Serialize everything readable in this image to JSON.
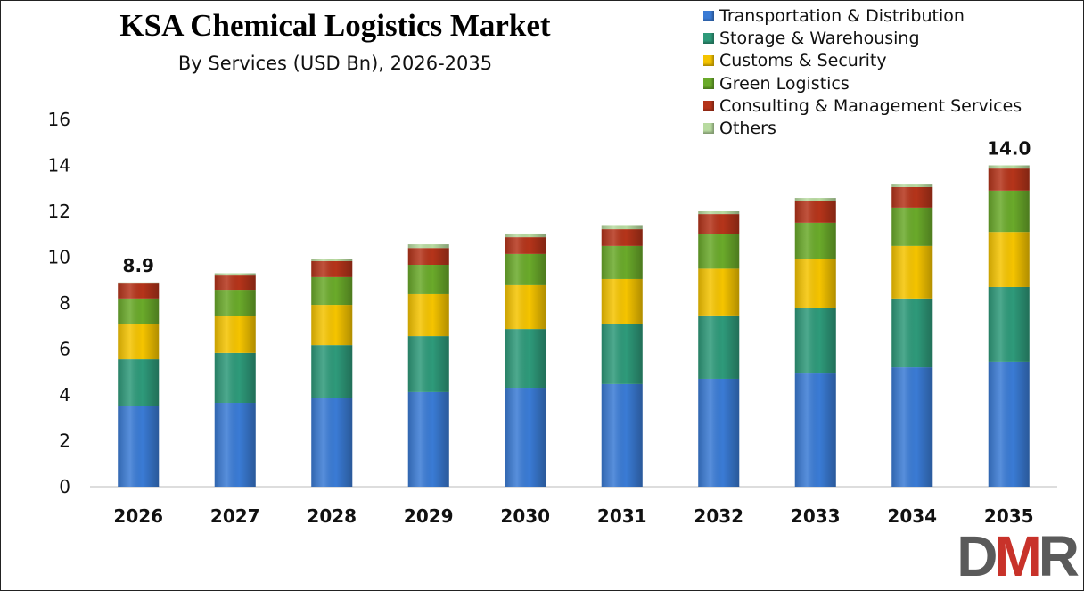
{
  "chart_data": {
    "type": "bar",
    "stacked": true,
    "title": "KSA Chemical Logistics Market",
    "subtitle": "By Services (USD Bn), 2026-2035",
    "xlabel": "",
    "ylabel": "",
    "ylim": [
      0,
      16
    ],
    "yticks": [
      0,
      2,
      4,
      6,
      8,
      10,
      12,
      14,
      16
    ],
    "grid": false,
    "legend_position": "top-right",
    "categories": [
      "2026",
      "2027",
      "2028",
      "2029",
      "2030",
      "2031",
      "2032",
      "2033",
      "2034",
      "2035"
    ],
    "series": [
      {
        "name": "Transportation & Distribution",
        "color": "#3a7bd5",
        "values": [
          3.5,
          3.65,
          3.88,
          4.12,
          4.31,
          4.47,
          4.7,
          4.93,
          5.2,
          5.44
        ]
      },
      {
        "name": "Storage & Warehousing",
        "color": "#2e9a7a",
        "values": [
          2.05,
          2.18,
          2.29,
          2.44,
          2.56,
          2.63,
          2.76,
          2.84,
          3.0,
          3.26
        ]
      },
      {
        "name": "Customs & Security",
        "color": "#f5c400",
        "values": [
          1.55,
          1.59,
          1.75,
          1.83,
          1.91,
          1.95,
          2.04,
          2.17,
          2.29,
          2.4
        ]
      },
      {
        "name": "Green Logistics",
        "color": "#6aaa2a",
        "values": [
          1.1,
          1.16,
          1.21,
          1.28,
          1.36,
          1.44,
          1.5,
          1.56,
          1.67,
          1.8
        ]
      },
      {
        "name": "Consulting & Management Services",
        "color": "#b5341a",
        "values": [
          0.65,
          0.62,
          0.7,
          0.73,
          0.73,
          0.73,
          0.88,
          0.93,
          0.89,
          0.96
        ]
      },
      {
        "name": "Others",
        "color": "#b8dba0",
        "values": [
          0.05,
          0.1,
          0.11,
          0.16,
          0.16,
          0.18,
          0.12,
          0.15,
          0.15,
          0.14
        ]
      }
    ],
    "annotations": [
      {
        "category": "2026",
        "text": "8.9"
      },
      {
        "category": "2035",
        "text": "14.0"
      }
    ]
  },
  "logo": {
    "text": "DMR",
    "colors": [
      "#5a5a5a",
      "#c8322a",
      "#5a5a5a"
    ]
  }
}
